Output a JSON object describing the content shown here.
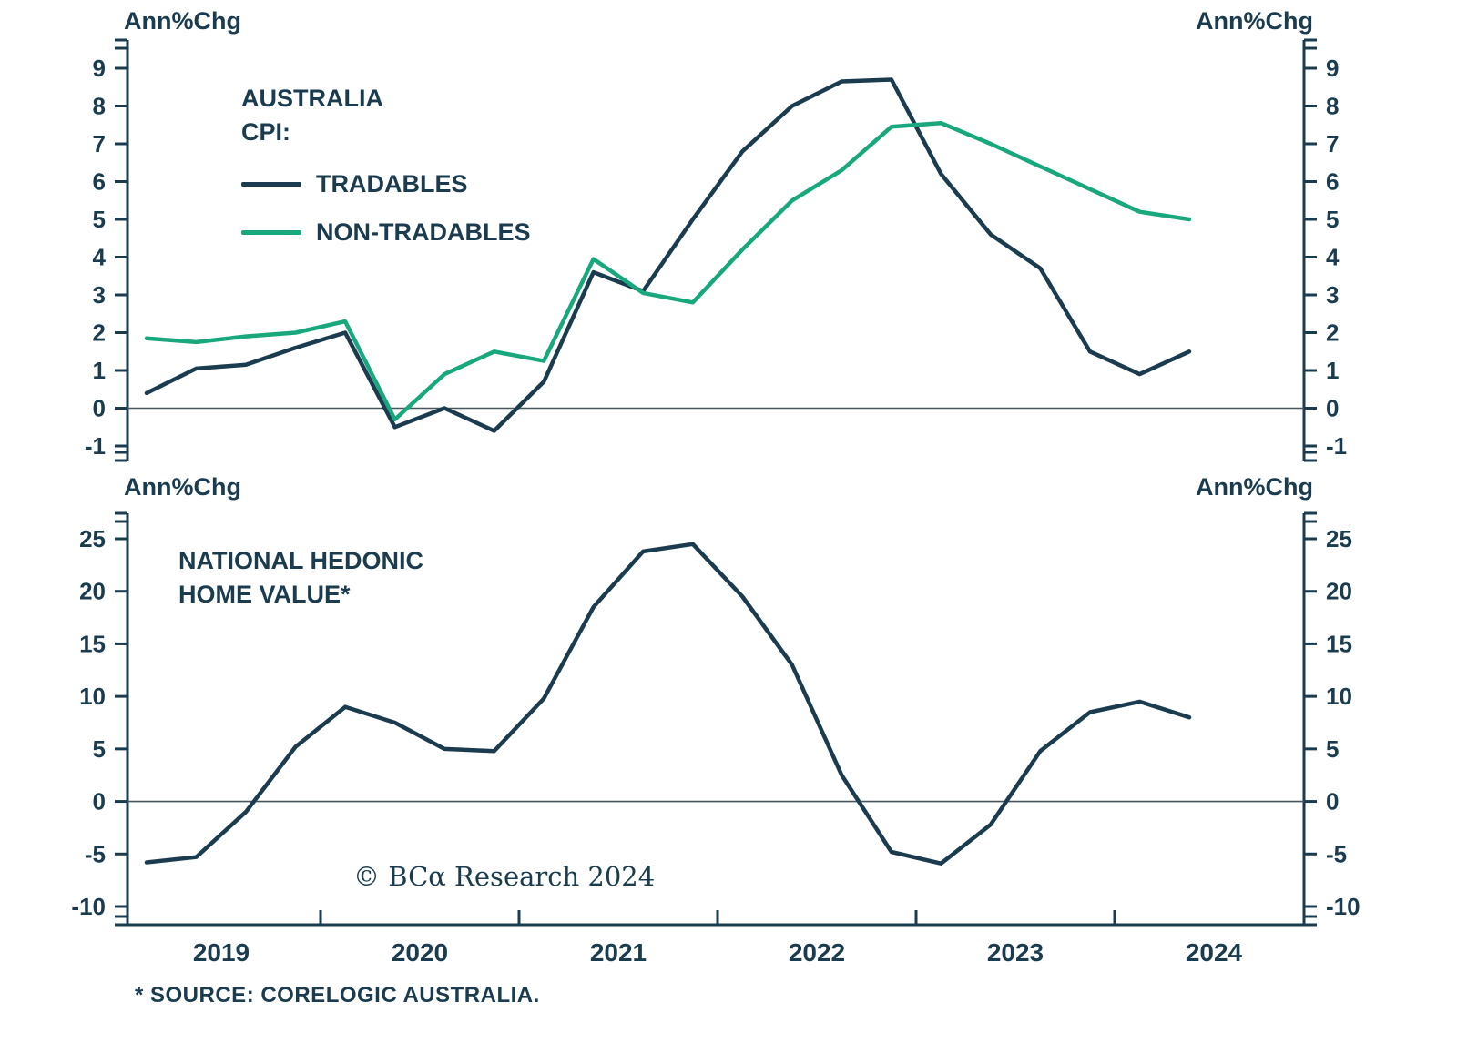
{
  "colors": {
    "dark": "#1b3c4e",
    "green": "#19a87d",
    "axis": "#1b3c4e",
    "zero": "#46555e",
    "background": "#ffffff"
  },
  "x_axis": {
    "year_labels": [
      "2019",
      "2020",
      "2021",
      "2022",
      "2023",
      "2024"
    ]
  },
  "copyright": {
    "text": "© BCα Research 2024"
  },
  "footer": {
    "source_note": "* SOURCE: CORELOGIC AUSTRALIA."
  },
  "chart_data": [
    {
      "type": "line",
      "title": "AUSTRALIA CPI:",
      "ylabel_left": "Ann%Chg",
      "ylabel_right": "Ann%Chg",
      "ylim": [
        -1,
        9
      ],
      "ytick_step": 1,
      "grid": false,
      "legend_position": "upper-left-inside",
      "x": [
        "2019 Q1",
        "2019 Q2",
        "2019 Q3",
        "2019 Q4",
        "2020 Q1",
        "2020 Q2",
        "2020 Q3",
        "2020 Q4",
        "2021 Q1",
        "2021 Q2",
        "2021 Q3",
        "2021 Q4",
        "2022 Q1",
        "2022 Q2",
        "2022 Q3",
        "2022 Q4",
        "2023 Q1",
        "2023 Q2",
        "2023 Q3",
        "2023 Q4",
        "2024 Q1",
        "2024 Q2"
      ],
      "series": [
        {
          "name": "TRADABLES",
          "color": "#1b3c4e",
          "values": [
            0.4,
            1.05,
            1.15,
            1.6,
            2.0,
            -0.5,
            0.0,
            -0.6,
            0.7,
            3.6,
            3.1,
            5.0,
            6.8,
            8.0,
            8.65,
            8.7,
            6.2,
            4.6,
            3.7,
            1.5,
            0.9,
            1.5
          ]
        },
        {
          "name": "NON-TRADABLES",
          "color": "#19a87d",
          "values": [
            1.85,
            1.75,
            1.9,
            2.0,
            2.3,
            -0.3,
            0.9,
            1.5,
            1.25,
            3.95,
            3.05,
            2.8,
            4.2,
            5.5,
            6.3,
            7.45,
            7.55,
            7.0,
            6.4,
            5.8,
            5.2,
            5.0
          ]
        }
      ]
    },
    {
      "type": "line",
      "title": "NATIONAL HEDONIC HOME VALUE*",
      "ylabel_left": "Ann%Chg",
      "ylabel_right": "Ann%Chg",
      "ylim": [
        -10,
        25
      ],
      "ytick_step": 5,
      "grid": false,
      "x": [
        "2019 Q1",
        "2019 Q2",
        "2019 Q3",
        "2019 Q4",
        "2020 Q1",
        "2020 Q2",
        "2020 Q3",
        "2020 Q4",
        "2021 Q1",
        "2021 Q2",
        "2021 Q3",
        "2021 Q4",
        "2022 Q1",
        "2022 Q2",
        "2022 Q3",
        "2022 Q4",
        "2023 Q1",
        "2023 Q2",
        "2023 Q3",
        "2023 Q4",
        "2024 Q1",
        "2024 Q2"
      ],
      "series": [
        {
          "name": "NATIONAL HEDONIC HOME VALUE*",
          "color": "#1b3c4e",
          "values": [
            -5.8,
            -5.3,
            -1.0,
            5.2,
            9.0,
            7.5,
            5.0,
            4.8,
            9.8,
            18.5,
            23.8,
            24.5,
            19.5,
            13.0,
            2.5,
            -4.8,
            -5.9,
            -2.2,
            4.8,
            8.5,
            9.5,
            8.0
          ]
        }
      ]
    }
  ]
}
